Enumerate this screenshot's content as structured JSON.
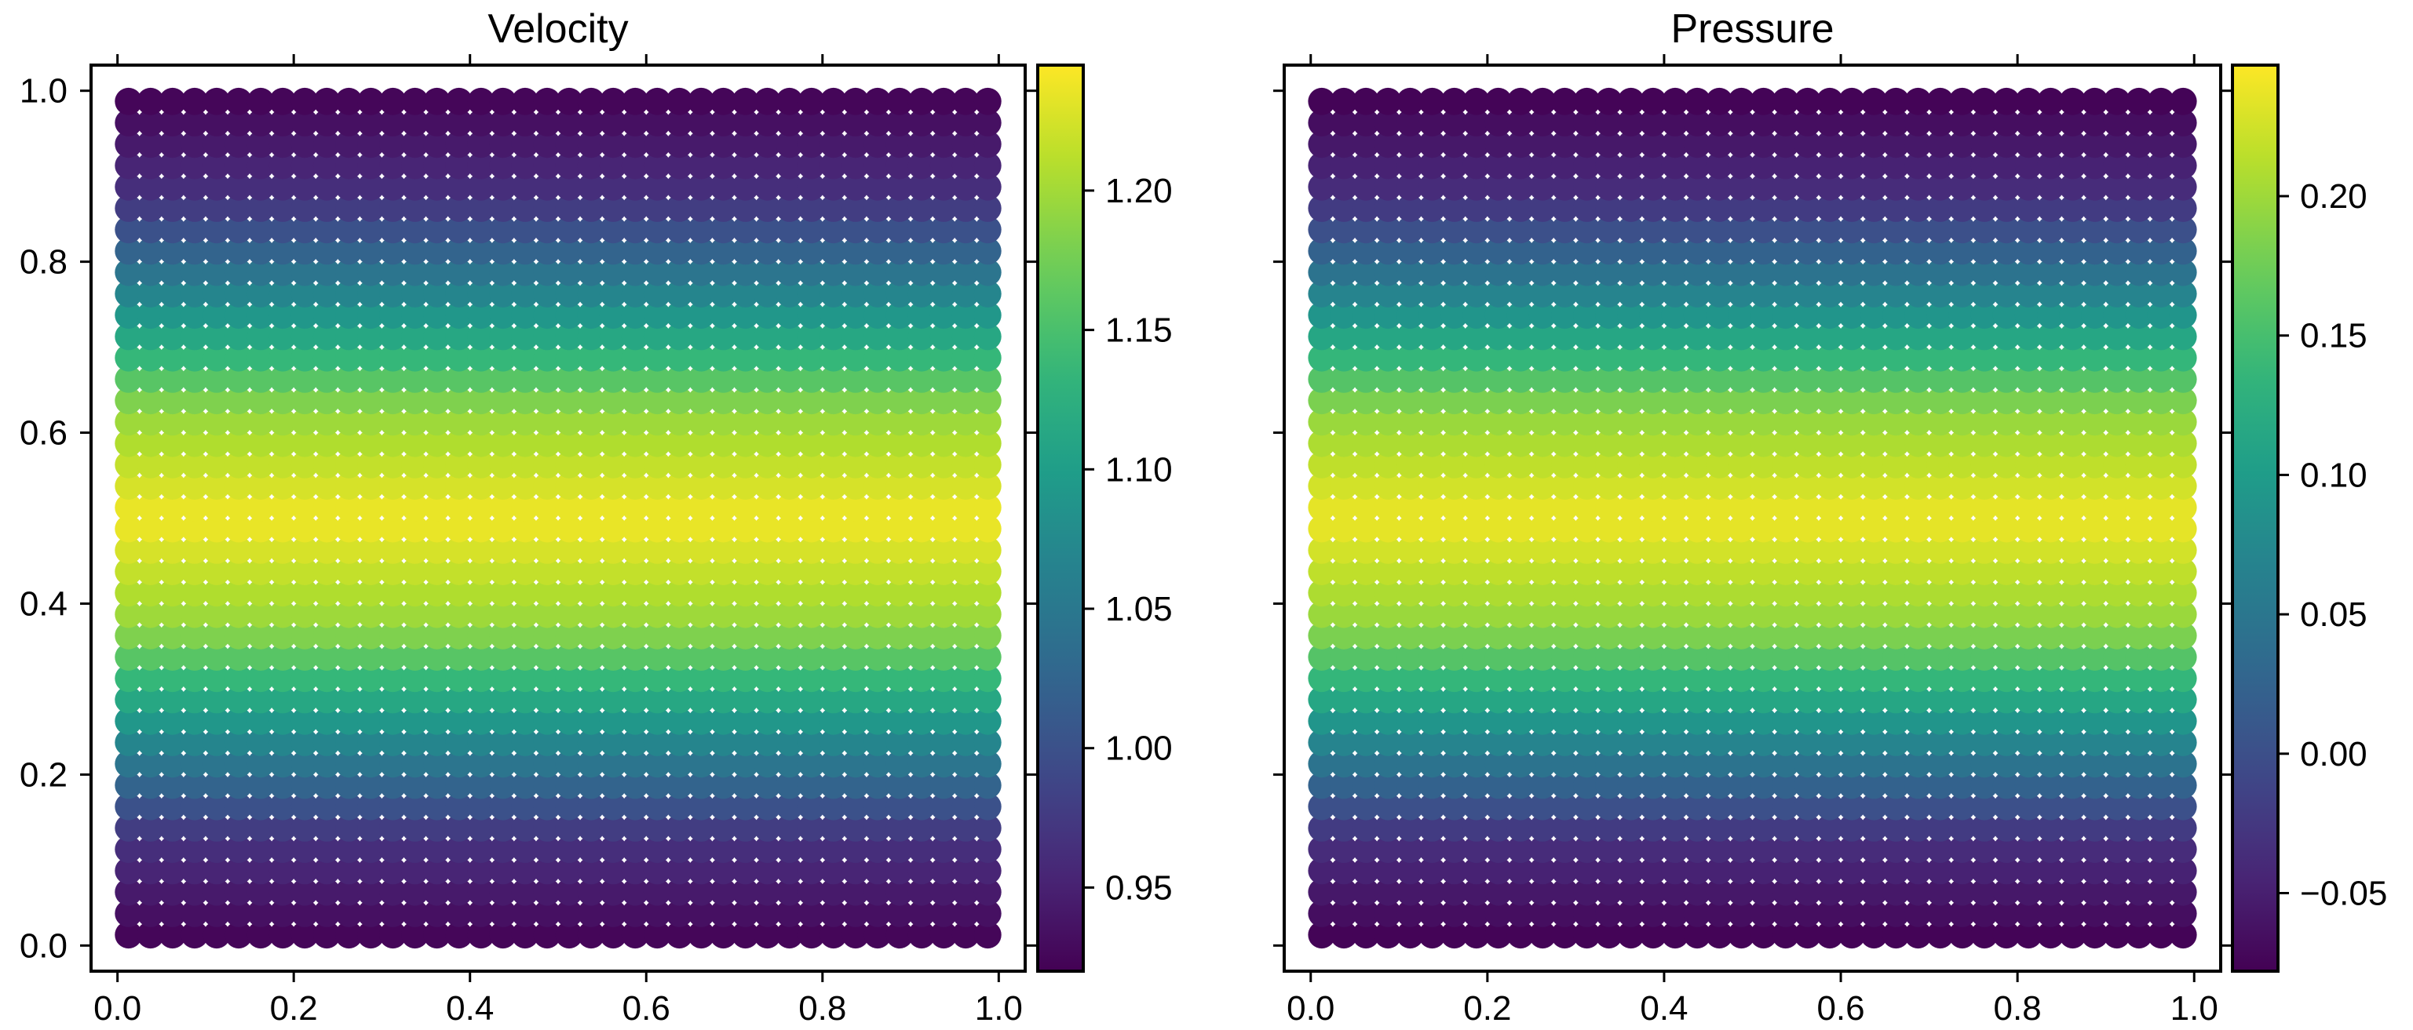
{
  "chart_data": [
    {
      "type": "scatter",
      "title": "Velocity",
      "xlabel": "",
      "ylabel": "",
      "xlim": [
        -0.03,
        1.03
      ],
      "ylim": [
        -0.03,
        1.03
      ],
      "xticks": [
        "0.0",
        "0.2",
        "0.4",
        "0.6",
        "0.8",
        "1.0"
      ],
      "yticks": [
        "0.0",
        "0.2",
        "0.4",
        "0.6",
        "0.8",
        "1.0"
      ],
      "grid": false,
      "grid_points": {
        "n": 40,
        "x_range": [
          0.0125,
          0.9875
        ],
        "y_range": [
          0.0125,
          0.9875
        ]
      },
      "field": {
        "description_formula": "value = 1.08 + 0.16 * cos(2*pi*(y - 0.5)) (varies with y only)",
        "profile": [
          {
            "y": 0.0,
            "value": 0.92
          },
          {
            "y": 0.125,
            "value": 0.967
          },
          {
            "y": 0.25,
            "value": 1.08
          },
          {
            "y": 0.375,
            "value": 1.193
          },
          {
            "y": 0.5,
            "value": 1.24
          },
          {
            "y": 0.625,
            "value": 1.193
          },
          {
            "y": 0.75,
            "value": 1.08
          },
          {
            "y": 0.875,
            "value": 0.967
          },
          {
            "y": 1.0,
            "value": 0.92
          }
        ]
      },
      "colorbar": {
        "colormap": "viridis",
        "range": [
          0.92,
          1.245
        ],
        "ticks": [
          0.95,
          1.0,
          1.05,
          1.1,
          1.15,
          1.2
        ],
        "ticklabels": [
          "0.95",
          "1.00",
          "1.05",
          "1.10",
          "1.15",
          "1.20"
        ]
      }
    },
    {
      "type": "scatter",
      "title": "Pressure",
      "xlabel": "",
      "ylabel": "",
      "xlim": [
        -0.03,
        1.03
      ],
      "ylim": [
        -0.03,
        1.03
      ],
      "xticks": [
        "0.0",
        "0.2",
        "0.4",
        "0.6",
        "0.8",
        "1.0"
      ],
      "yticks": [],
      "grid": false,
      "grid_points": {
        "n": 40,
        "x_range": [
          0.0125,
          0.9875
        ],
        "y_range": [
          0.0125,
          0.9875
        ]
      },
      "field": {
        "description_formula": "value = 0.08 + 0.16 * cos(2*pi*(y - 0.5)) (varies with y only)",
        "profile": [
          {
            "y": 0.0,
            "value": -0.08
          },
          {
            "y": 0.125,
            "value": -0.033
          },
          {
            "y": 0.25,
            "value": 0.08
          },
          {
            "y": 0.375,
            "value": 0.193
          },
          {
            "y": 0.5,
            "value": 0.24
          },
          {
            "y": 0.625,
            "value": 0.193
          },
          {
            "y": 0.75,
            "value": 0.08
          },
          {
            "y": 0.875,
            "value": -0.033
          },
          {
            "y": 1.0,
            "value": -0.08
          }
        ]
      },
      "colorbar": {
        "colormap": "viridis",
        "range": [
          -0.078,
          0.247
        ],
        "ticks": [
          -0.05,
          0.0,
          0.05,
          0.1,
          0.15,
          0.2
        ],
        "ticklabels": [
          "−0.05",
          "0.00",
          "0.05",
          "0.10",
          "0.15",
          "0.20"
        ]
      }
    }
  ]
}
